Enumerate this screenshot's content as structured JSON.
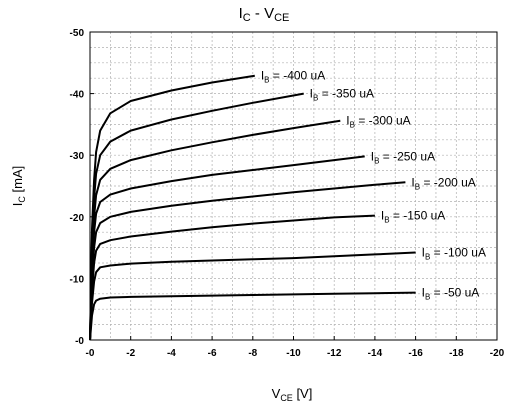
{
  "chart_data": {
    "type": "line",
    "title": "I_C - V_CE",
    "title_parts": {
      "main": "I",
      "sub": "C",
      "mid": " - V",
      "sub2": "CE"
    },
    "xlabel": "V_CE [V]",
    "xlabel_parts": {
      "main": "V",
      "sub": "CE",
      "unit": " [V]"
    },
    "ylabel": "I_C [mA]",
    "ylabel_parts": {
      "main": "I",
      "sub": "C",
      "unit": " [mA]"
    },
    "xlim": [
      0,
      -20
    ],
    "ylim": [
      0,
      -50
    ],
    "x_ticks": [
      {
        "v": 0,
        "label": "-0"
      },
      {
        "v": -2,
        "label": "-2"
      },
      {
        "v": -4,
        "label": "-4"
      },
      {
        "v": -6,
        "label": "-6"
      },
      {
        "v": -8,
        "label": "-8"
      },
      {
        "v": -10,
        "label": "-10"
      },
      {
        "v": -12,
        "label": "-12"
      },
      {
        "v": -14,
        "label": "-14"
      },
      {
        "v": -16,
        "label": "-16"
      },
      {
        "v": -18,
        "label": "-18"
      },
      {
        "v": -20,
        "label": "-20"
      }
    ],
    "y_ticks": [
      {
        "v": 0,
        "label": "-0"
      },
      {
        "v": -10,
        "label": "-10"
      },
      {
        "v": -20,
        "label": "-20"
      },
      {
        "v": -30,
        "label": "-30"
      },
      {
        "v": -40,
        "label": "-40"
      },
      {
        "v": -50,
        "label": "-50"
      }
    ],
    "grid": true,
    "line_color": "#000000",
    "grid_color": "#b0b0b0",
    "series": [
      {
        "name": "I_B = -50 uA",
        "label_parts": {
          "main": "I",
          "sub": "B",
          "rest": " = -50 uA"
        },
        "x": [
          0,
          -0.05,
          -0.1,
          -0.2,
          -0.3,
          -0.5,
          -1,
          -2,
          -4,
          -6,
          -8,
          -10,
          -12,
          -14,
          -16
        ],
        "y": [
          0,
          -2.0,
          -4.0,
          -5.8,
          -6.4,
          -6.7,
          -6.9,
          -7.0,
          -7.1,
          -7.2,
          -7.3,
          -7.4,
          -7.5,
          -7.6,
          -7.7
        ]
      },
      {
        "name": "I_B = -100 uA",
        "label_parts": {
          "main": "I",
          "sub": "B",
          "rest": " = -100 uA"
        },
        "x": [
          0,
          -0.05,
          -0.1,
          -0.2,
          -0.3,
          -0.5,
          -1,
          -2,
          -4,
          -6,
          -8,
          -10,
          -12,
          -14,
          -16
        ],
        "y": [
          0,
          -3.0,
          -6.0,
          -9.5,
          -11.0,
          -11.8,
          -12.1,
          -12.4,
          -12.7,
          -12.9,
          -13.1,
          -13.3,
          -13.6,
          -13.9,
          -14.2
        ]
      },
      {
        "name": "I_B = -150 uA",
        "label_parts": {
          "main": "I",
          "sub": "B",
          "rest": " = -150 uA"
        },
        "x": [
          0,
          -0.05,
          -0.1,
          -0.2,
          -0.3,
          -0.5,
          -1,
          -2,
          -4,
          -6,
          -8,
          -10,
          -12,
          -14
        ],
        "y": [
          0,
          -4.0,
          -8.0,
          -12.5,
          -14.5,
          -15.6,
          -16.2,
          -16.8,
          -17.6,
          -18.3,
          -18.9,
          -19.4,
          -19.9,
          -20.2
        ]
      },
      {
        "name": "I_B = -200 uA",
        "label_parts": {
          "main": "I",
          "sub": "B",
          "rest": " = -200 uA"
        },
        "x": [
          0,
          -0.05,
          -0.1,
          -0.2,
          -0.3,
          -0.5,
          -1,
          -2,
          -4,
          -6,
          -8,
          -10,
          -12,
          -14,
          -15.5
        ],
        "y": [
          0,
          -5.0,
          -10.0,
          -15.0,
          -17.5,
          -19.0,
          -20.0,
          -20.8,
          -21.8,
          -22.6,
          -23.3,
          -24.0,
          -24.6,
          -25.2,
          -25.6
        ]
      },
      {
        "name": "I_B = -250 uA",
        "label_parts": {
          "main": "I",
          "sub": "B",
          "rest": " = -250 uA"
        },
        "x": [
          0,
          -0.05,
          -0.1,
          -0.2,
          -0.3,
          -0.5,
          -1,
          -2,
          -4,
          -6,
          -8,
          -10,
          -12,
          -13.5
        ],
        "y": [
          0,
          -6.0,
          -12.0,
          -17.5,
          -20.5,
          -22.4,
          -23.6,
          -24.6,
          -25.8,
          -26.8,
          -27.6,
          -28.4,
          -29.2,
          -29.8
        ]
      },
      {
        "name": "I_B = -300 uA",
        "label_parts": {
          "main": "I",
          "sub": "B",
          "rest": " = -300 uA"
        },
        "x": [
          0,
          -0.05,
          -0.1,
          -0.2,
          -0.3,
          -0.5,
          -1,
          -2,
          -4,
          -6,
          -8,
          -10,
          -12.3
        ],
        "y": [
          0,
          -7.0,
          -14.0,
          -20.0,
          -23.5,
          -26.0,
          -27.8,
          -29.2,
          -30.8,
          -32.1,
          -33.3,
          -34.4,
          -35.6
        ]
      },
      {
        "name": "I_B = -350 uA",
        "label_parts": {
          "main": "I",
          "sub": "B",
          "rest": " = -350 uA"
        },
        "x": [
          0,
          -0.05,
          -0.1,
          -0.2,
          -0.3,
          -0.5,
          -1,
          -2,
          -4,
          -6,
          -8,
          -10.5
        ],
        "y": [
          0,
          -8.0,
          -16.0,
          -23.0,
          -27.0,
          -30.0,
          -32.2,
          -34.0,
          -35.8,
          -37.2,
          -38.5,
          -40.0
        ]
      },
      {
        "name": "I_B = -400 uA",
        "label_parts": {
          "main": "I",
          "sub": "B",
          "rest": " = -400 uA"
        },
        "x": [
          0,
          -0.05,
          -0.1,
          -0.2,
          -0.3,
          -0.5,
          -1,
          -2,
          -4,
          -6,
          -8.1
        ],
        "y": [
          0,
          -9.0,
          -18.0,
          -26.0,
          -30.5,
          -34.0,
          -36.8,
          -38.8,
          -40.5,
          -41.8,
          -42.9
        ]
      }
    ]
  }
}
